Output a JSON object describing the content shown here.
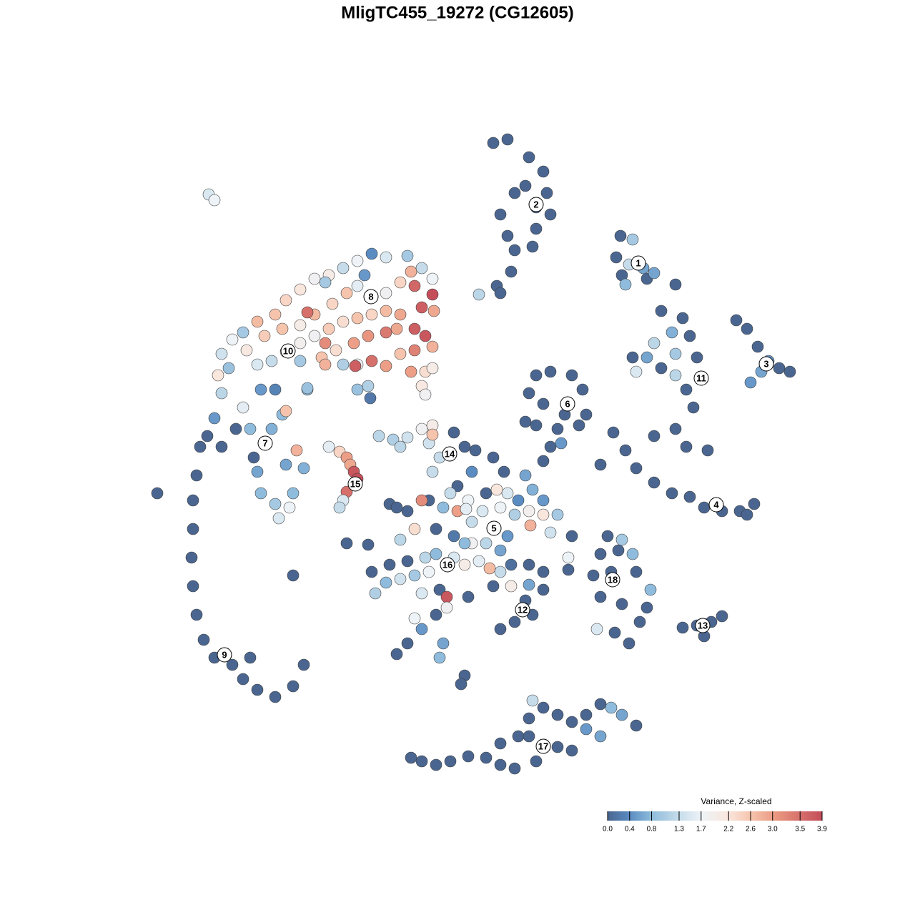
{
  "chart_data": {
    "type": "scatter",
    "title": "MligTC455_19272 (CG12605)",
    "xlim": [
      -44,
      48
    ],
    "ylim": [
      -46,
      46
    ],
    "x": [
      -36,
      -36.5,
      -37,
      -37,
      -37.2,
      -37,
      -36.5,
      -35.5,
      -34,
      -31.5,
      -30,
      -28,
      -25.5,
      -23,
      -21.5,
      -29,
      -42,
      -23,
      -35,
      -33,
      -31,
      -34,
      -28.5,
      -28,
      -27.5,
      -25.5,
      -25,
      -23.5,
      -23,
      -21.5,
      -24,
      -26,
      -24.5,
      -29,
      -33,
      -30,
      -27.5,
      -22.5,
      -24,
      -21,
      -25.5,
      -34.8,
      -34,
      -12,
      -10,
      -7,
      -5,
      -3.5,
      -14,
      -16,
      -18,
      -20,
      -22,
      -24,
      -25.5,
      -28,
      -30,
      -31.5,
      -33,
      -33.5,
      -32,
      -29.5,
      -27,
      -24.5,
      -22,
      -20,
      -17.5,
      -15.5,
      -14,
      -10,
      -8,
      -6.5,
      -6,
      -3.5,
      -5,
      -3.3,
      -8,
      -10,
      -12,
      -14,
      -16,
      -18,
      -20,
      -22,
      -24,
      -26,
      -28,
      -22,
      -19,
      -17,
      -14.5,
      -12.5,
      -10,
      -8.5,
      -6,
      -4.5,
      -3.5,
      -6,
      -8,
      -10,
      -12,
      -14,
      -16,
      -18.5,
      -6.5,
      -4.5,
      -3.5,
      -5,
      -4.5,
      -14,
      -12.5,
      -12.2,
      -21,
      -18.5,
      -13,
      -21,
      -18.5,
      -14.3,
      -18,
      -16.5,
      -15.5,
      -15,
      -14.5,
      -14,
      -15.5,
      -16,
      -16.5,
      -11,
      -9,
      -7,
      -5,
      -3.5,
      -4,
      -2.5,
      -3.5,
      -0.5,
      1,
      -8,
      -3.5,
      2.5,
      5,
      6.5,
      2,
      0,
      -1,
      1.5,
      4,
      5.5,
      7,
      8.5,
      10.5,
      9.5,
      12,
      10,
      12,
      14,
      13,
      10.2,
      8,
      6,
      3.5,
      2,
      0,
      -2,
      -4,
      -5,
      -6,
      -8,
      -9.5,
      -7,
      -3,
      -0.5,
      2,
      4,
      6,
      7.5,
      6,
      4.5,
      3,
      1,
      -0.5,
      -3,
      -4.5,
      -4,
      -6,
      -8,
      -10,
      -11.5,
      -12,
      -9.5,
      -7,
      -5,
      -2.5,
      -1.5,
      -1.5,
      -3,
      -6,
      -5,
      -7,
      -8.5,
      -2,
      -2.5,
      1,
      0.5,
      1.5,
      5,
      7.5,
      9.5,
      10.5,
      8,
      6,
      12,
      12,
      10,
      15.5,
      10,
      -8.5,
      -15.5,
      -12.5,
      1.2,
      5,
      7,
      1,
      5,
      7,
      10,
      12,
      12.5,
      13,
      11,
      10.5,
      8,
      7,
      8,
      6,
      7.5,
      5.5,
      6,
      3,
      11,
      9.5,
      22.8,
      24.5,
      22.2,
      24,
      26,
      23,
      26.5,
      23.5,
      27.5,
      30.5,
      39,
      40.5,
      42,
      43.5,
      45,
      46.5,
      41,
      42.5,
      28.5,
      31.5,
      32.5,
      30,
      27.5,
      24.5,
      26.5,
      28.5,
      30.5,
      33.5,
      32,
      33,
      30.5,
      27.5,
      32,
      35,
      25,
      30.5,
      11,
      13,
      16,
      17.5,
      10,
      12,
      15,
      18,
      11,
      14,
      17,
      13,
      12,
      14.5,
      9.5,
      21.8,
      23.5,
      25,
      27.5,
      30,
      32.5,
      34.5,
      37,
      39.5,
      41.5,
      20,
      40.5,
      31.5,
      33.5,
      35.5,
      37,
      34.5,
      21,
      23,
      20,
      22.5,
      24.5,
      19,
      21.5,
      25,
      27,
      20,
      23,
      26.5,
      19.5,
      22,
      24,
      25.5,
      16,
      15.5,
      -6.5,
      -5,
      -3,
      -1,
      1.5,
      4,
      6,
      8,
      6,
      8.5,
      10,
      12,
      10.5,
      14,
      16,
      18,
      20,
      21.5,
      23,
      25,
      20,
      16,
      14,
      11,
      18,
      10
    ],
    "y": [
      1.5,
      -2.5,
      -6,
      -10,
      -14,
      -18,
      -22,
      -25.5,
      -28,
      -29,
      -31,
      -32.5,
      -33.5,
      -32,
      -29,
      -28,
      -5,
      -16.5,
      3,
      1.5,
      4,
      5.5,
      0,
      -2,
      -5,
      -6.5,
      -8.5,
      -7,
      -5,
      -1.5,
      -1,
      4,
      6,
      4,
      9,
      7,
      9.5,
      1,
      6.5,
      9.5,
      9.5,
      36.8,
      36,
      28.5,
      28,
      28.2,
      26.5,
      25,
      27.5,
      26.5,
      25.5,
      25,
      23.5,
      22,
      20,
      19,
      17.5,
      16.5,
      14.5,
      11.5,
      12.5,
      15,
      17,
      18,
      18.5,
      20,
      21.5,
      23,
      24,
      23,
      24.5,
      26,
      24,
      22.8,
      21,
      20.5,
      20,
      20.5,
      20,
      19.5,
      19,
      18,
      17,
      16,
      14.8,
      13.5,
      13,
      13.5,
      14,
      15,
      16,
      17,
      17.5,
      18,
      18,
      17,
      15.5,
      15,
      14.5,
      12.8,
      13.5,
      13,
      13,
      13,
      12,
      12,
      12.5,
      10,
      8.8,
      9.5,
      10,
      8.3,
      9.7,
      24.5,
      25.5,
      20.3,
      16,
      12.8,
      1.5,
      0.8,
      0,
      -1,
      -2,
      -3,
      -4.8,
      -6,
      -7,
      3,
      2.5,
      2.8,
      4,
      4.5,
      2,
      0,
      -2,
      3.5,
      1.5,
      1.5,
      3.2,
      1,
      0,
      -2,
      -2,
      -4,
      -5,
      -6,
      -5,
      -4.5,
      -5,
      -6,
      -4.5,
      -2.5,
      -6,
      -7.5,
      -8,
      -8,
      -10.5,
      -9.5,
      -8,
      -7,
      -7.5,
      -9,
      -7.5,
      -7,
      -6,
      -6,
      -10,
      -11.5,
      -6.5,
      -7.5,
      -10,
      -11,
      -12,
      -12,
      -13,
      -15,
      -16,
      -15.5,
      -14.5,
      -15,
      -14,
      -13.5,
      -14,
      -16,
      -16.5,
      -17,
      -17.5,
      -19,
      -16,
      -15,
      -14.5,
      -19,
      -18.5,
      -19.5,
      -21,
      -22,
      -22.5,
      -24,
      -26,
      -27.5,
      -26,
      -28,
      -30.5,
      -31.7,
      -19.5,
      -18,
      -18,
      -20,
      -22,
      -23,
      -24,
      -18.5,
      -16,
      -15,
      -15.7,
      -17.8,
      -7,
      -12,
      -12.2,
      -7.2,
      -10,
      -11,
      -12,
      44,
      44.5,
      42,
      40,
      37,
      34,
      32,
      29.5,
      29,
      31,
      37,
      34,
      26,
      24,
      23,
      22.8,
      35,
      38,
      31,
      30.5,
      28,
      27,
      26.5,
      25.5,
      25,
      24.2,
      25.8,
      24.2,
      19.2,
      18,
      15.5,
      13.5,
      12.5,
      12,
      10.5,
      12,
      20.5,
      19.5,
      17,
      17.5,
      16,
      14,
      14,
      12.5,
      11.5,
      14,
      9.5,
      7,
      4,
      3,
      1.5,
      1,
      12,
      14.5,
      11.5,
      12,
      11.5,
      9.5,
      9,
      7.5,
      6,
      6,
      4.5,
      4,
      4.5,
      1.5,
      -0.5,
      2,
      5,
      3.5,
      1,
      -1.5,
      -3.5,
      -5,
      -5.5,
      -7,
      -7.5,
      -7.5,
      -6.5,
      -1,
      -8,
      -23.8,
      -23.5,
      -23,
      -22.2,
      -25,
      -11,
      -11.5,
      -13.5,
      -13,
      -13.5,
      -16.5,
      -16,
      -16,
      -18.5,
      -19.5,
      -20.5,
      -21,
      -24,
      -24.5,
      -26,
      -23,
      -11,
      -14,
      -42,
      -42.5,
      -43,
      -42.5,
      -41.8,
      -42,
      -43,
      -43.5,
      -40,
      -39,
      -36.5,
      -35,
      -34,
      -36,
      -37,
      -36,
      -34.5,
      -35,
      -36,
      -37.5,
      -39,
      -41,
      -40.5,
      -42.5,
      -38,
      -39
    ],
    "color_values": [
      0,
      0,
      0,
      0,
      0,
      0,
      0,
      0,
      0,
      0,
      0,
      0,
      0,
      0,
      0,
      0,
      0,
      0,
      0,
      0,
      0,
      0.5,
      0,
      0.6,
      0.8,
      1.0,
      1.5,
      1.7,
      0.8,
      0.7,
      0.6,
      0.7,
      0.8,
      0.8,
      1.2,
      1.6,
      0.5,
      2.8,
      2.6,
      0.8,
      0.3,
      1.5,
      1.7,
      0.4,
      1.5,
      1.0,
      1.3,
      1.7,
      1.7,
      1.3,
      2.0,
      1.8,
      2.2,
      2.4,
      2.6,
      2.7,
      1.0,
      1.7,
      1.4,
      2.2,
      0.9,
      2.1,
      2.5,
      2.6,
      2.0,
      2.7,
      2.4,
      2.6,
      1.6,
      1.8,
      2.4,
      2.8,
      3.6,
      3.9,
      3.7,
      2.9,
      2.9,
      2.7,
      2.4,
      2.6,
      2.3,
      2.5,
      1.8,
      1.9,
      2.2,
      1.3,
      1.5,
      1.0,
      2.6,
      2.3,
      3.0,
      3.1,
      3.4,
      2.9,
      3.7,
      3.8,
      2.8,
      3.3,
      2.6,
      3.0,
      3.5,
      1.7,
      1.1,
      2.8,
      3.0,
      2.3,
      2.0,
      2.1,
      1.8,
      0.9,
      1.1,
      0.2,
      0.9,
      1.0,
      0.5,
      3.5,
      3.2,
      3.7,
      1.6,
      2.4,
      3.0,
      2.9,
      3.8,
      3.9,
      3.5,
      1.5,
      1.3,
      1.2,
      1.1,
      1.4,
      1.8,
      2.0,
      1.4,
      1.3,
      1.3,
      0,
      0,
      1.2,
      2.6,
      0,
      0,
      0,
      0.4,
      0,
      1.3,
      1.7,
      0,
      2.2,
      1.5,
      0.4,
      0.7,
      0.6,
      0.5,
      1.9,
      2.2,
      1.0,
      1.4,
      2.8,
      1.1,
      1.7,
      1.5,
      1.3,
      3.0,
      0.8,
      0,
      3.2,
      2.3,
      1.2,
      0,
      0,
      0,
      0.2,
      1.8,
      1.2,
      0.6,
      0.1,
      1.3,
      2.7,
      1.6,
      2.0,
      1.5,
      0.8,
      1.2,
      1.7,
      1.0,
      1.4,
      0.8,
      1.1,
      0,
      0,
      0,
      1.5,
      0,
      3.8,
      1.8,
      0,
      1.7,
      0.5,
      0,
      0,
      0.6,
      0.8,
      0,
      0,
      0,
      0,
      2.0,
      0,
      0,
      0,
      0,
      0,
      0,
      0,
      0,
      0.6,
      0,
      0,
      0,
      1.6,
      0.6,
      0.5,
      0.8,
      0,
      0,
      0,
      0,
      0,
      0,
      0,
      0,
      0,
      0,
      0,
      0,
      0,
      0,
      0,
      1.2,
      0,
      0,
      0,
      1,
      0,
      1.3,
      0.6,
      0,
      0,
      0.8,
      0.6,
      0,
      0,
      0,
      0,
      0.5,
      0,
      0,
      0.5,
      0.6,
      0,
      0,
      0,
      0.7,
      1.2,
      0,
      0.6,
      0,
      1.2,
      0,
      0,
      0,
      0,
      0,
      0,
      0,
      1.5,
      1.0,
      0,
      0,
      0,
      0,
      0,
      0,
      0,
      0,
      0,
      0,
      0,
      0,
      0,
      0.5,
      0,
      0,
      0,
      0,
      0,
      0,
      0,
      0,
      0,
      0,
      0,
      0,
      0,
      0,
      0,
      0,
      0,
      0,
      0,
      1.0,
      0,
      0,
      0.8,
      0,
      0,
      0,
      0.8,
      0,
      0,
      0,
      1.5,
      0,
      0,
      0,
      0,
      1.7,
      0,
      0,
      0,
      0,
      0,
      0,
      0,
      0,
      0,
      0,
      0,
      0,
      1.3,
      0,
      0,
      0,
      0,
      0.8,
      0.6,
      0,
      0.6,
      0,
      0,
      0,
      0.5,
      0
    ],
    "cluster_labels": {
      "text": [
        "1",
        "2",
        "3",
        "4",
        "5",
        "6",
        "7",
        "8",
        "9",
        "10",
        "11",
        "12",
        "13",
        "14",
        "15",
        "16",
        "17",
        "18"
      ],
      "x": [
        25.3,
        11,
        43.2,
        36.2,
        5.1,
        15.4,
        -26.9,
        -12.1,
        -32.6,
        -23.7,
        34.1,
        9.1,
        34.3,
        -1.1,
        -14.3,
        -1.4,
        12,
        21.7
      ],
      "y": [
        27.2,
        35.4,
        13.1,
        -6.6,
        -9.9,
        7.5,
        2,
        22.5,
        -27.6,
        14.9,
        11.1,
        -21.3,
        -23.5,
        0.5,
        -3.7,
        -15,
        -40.4,
        -17.1
      ]
    },
    "colorbar_title": "Variance, Z-scaled",
    "colorbar_ticks": [
      {
        "value": 0,
        "label": "0.0"
      },
      0.4,
      0.8,
      1.3,
      1.7,
      2.2,
      2.6,
      {
        "value": 3,
        "label": "3.0"
      },
      3.5,
      3.9
    ],
    "colorbar_colors": [
      "#4a6690",
      "#5a8cc2",
      "#8fbcdc",
      "#c6dcea",
      "#eef3f7",
      "#f9e6dd",
      "#f6c4ad",
      "#ec9e86",
      "#d6706b",
      "#c44e5a"
    ]
  }
}
